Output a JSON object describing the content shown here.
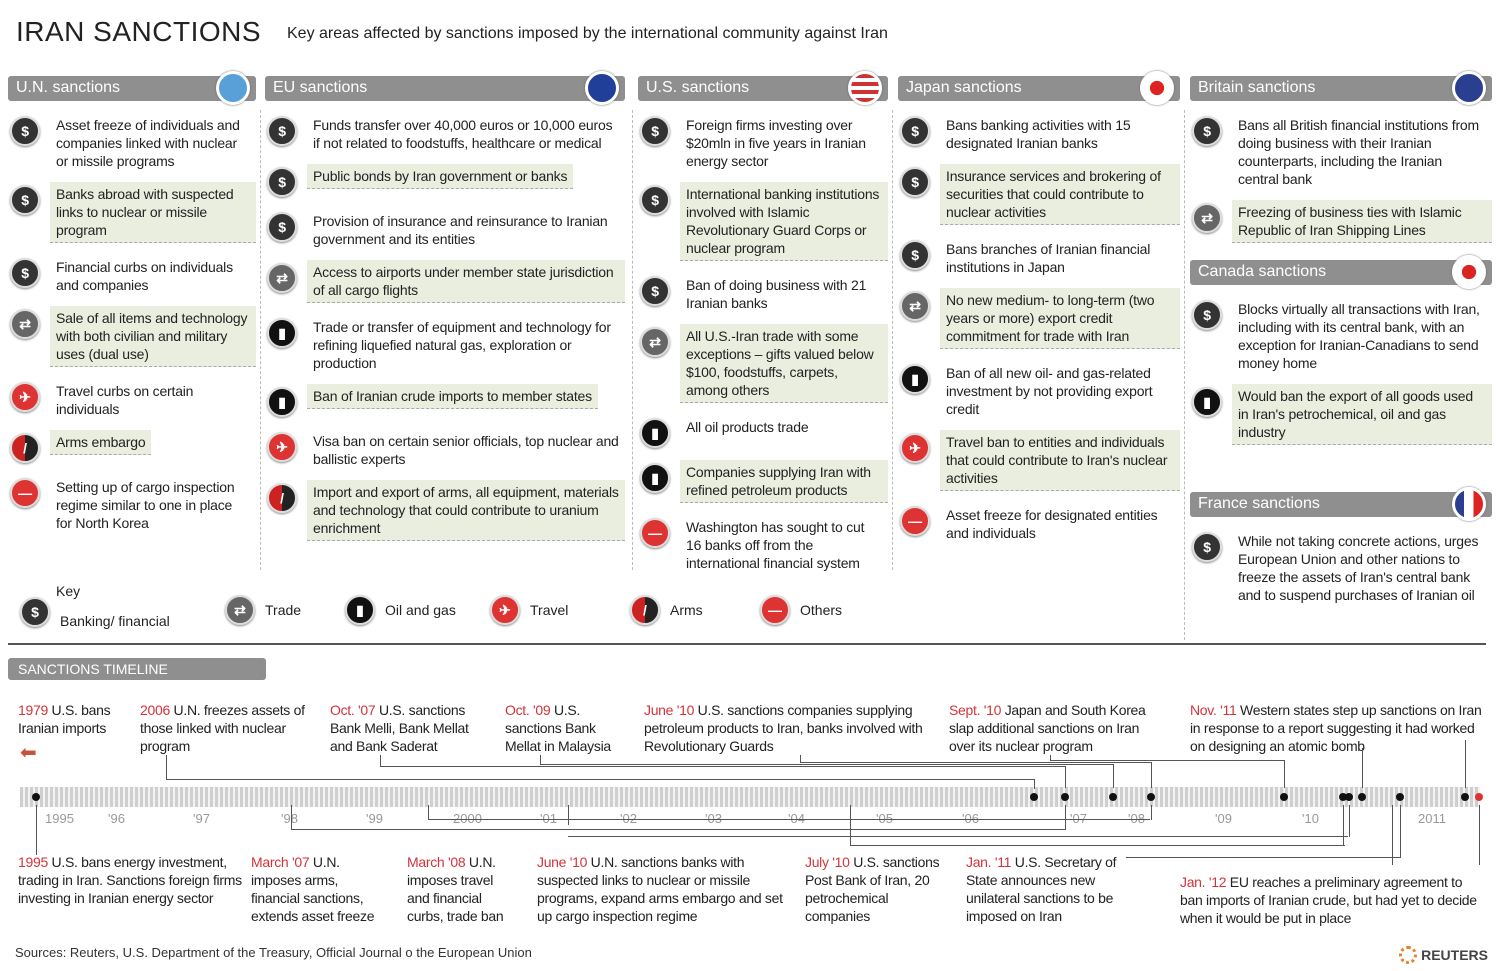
{
  "title": "IRAN SANCTIONS",
  "subtitle": "Key areas affected by sanctions imposed by the international community against Iran",
  "icon_glyphs": {
    "banking": "$",
    "trade": "⇄",
    "oil": "▮",
    "travel": "✈",
    "arms": "/",
    "others": "—"
  },
  "flag_colors": {
    "un": "#5aa0d8",
    "eu": "#1f3f99",
    "us": "#c33",
    "japan": "#fff",
    "britain": "#2a3f8f",
    "canada": "#fff",
    "france": "#fff"
  },
  "columns": [
    {
      "key": "un",
      "title": "U.N. sanctions",
      "items": [
        {
          "icon": "banking",
          "hl": false,
          "text": "Asset freeze of individuals and companies linked with nuclear or missile programs"
        },
        {
          "icon": "banking",
          "hl": true,
          "text": "Banks abroad with suspected links to nuclear or missile program"
        },
        {
          "icon": "banking",
          "hl": false,
          "text": "Financial curbs on individuals and companies"
        },
        {
          "icon": "trade",
          "hl": true,
          "text": "Sale of all items and technology with both civilian and military uses (dual use)"
        },
        {
          "icon": "travel",
          "hl": false,
          "text": "Travel curbs on certain individuals"
        },
        {
          "icon": "arms",
          "hl": true,
          "text": "Arms embargo"
        },
        {
          "icon": "others",
          "hl": false,
          "text": "Setting up of cargo inspection regime similar to one in place for North Korea"
        }
      ]
    },
    {
      "key": "eu",
      "title": "EU sanctions",
      "items": [
        {
          "icon": "banking",
          "hl": false,
          "text": "Funds transfer over 40,000 euros or 10,000 euros if not related to foodstuffs, healthcare or medical"
        },
        {
          "icon": "banking",
          "hl": true,
          "text": "Public bonds by Iran government or banks"
        },
        {
          "icon": "banking",
          "hl": false,
          "text": "Provision of insurance and reinsurance to Iranian government and its entities"
        },
        {
          "icon": "trade",
          "hl": true,
          "text": "Access to airports under member state jurisdiction of all cargo flights"
        },
        {
          "icon": "oil",
          "hl": false,
          "text": "Trade or transfer of equipment and technology for refining liquefied natural gas, exploration or production"
        },
        {
          "icon": "oil",
          "hl": true,
          "text": "Ban of Iranian crude imports to member states"
        },
        {
          "icon": "travel",
          "hl": false,
          "text": "Visa ban on certain senior officials, top nuclear and ballistic experts"
        },
        {
          "icon": "arms",
          "hl": true,
          "text": "Import and export of arms, all equipment, materials and technology that could contribute to uranium enrichment"
        }
      ]
    },
    {
      "key": "us",
      "title": "U.S. sanctions",
      "items": [
        {
          "icon": "banking",
          "hl": false,
          "text": "Foreign firms investing over $20mln in five years in Iranian energy sector"
        },
        {
          "icon": "banking",
          "hl": true,
          "text": "International banking institutions involved with Islamic Revolutionary Guard Corps or nuclear program"
        },
        {
          "icon": "banking",
          "hl": false,
          "text": "Ban of doing business with 21 Iranian banks"
        },
        {
          "icon": "trade",
          "hl": true,
          "text": "All U.S.-Iran trade with some exceptions – gifts valued below $100, foodstuffs, carpets, among others"
        },
        {
          "icon": "oil",
          "hl": false,
          "text": "All oil products trade"
        },
        {
          "icon": "oil",
          "hl": true,
          "text": "Companies supplying Iran with refined petroleum products"
        },
        {
          "icon": "others",
          "hl": false,
          "text": "Washington has sought to cut 16 banks off from the international financial system"
        }
      ]
    },
    {
      "key": "japan",
      "title": "Japan sanctions",
      "items": [
        {
          "icon": "banking",
          "hl": false,
          "text": "Bans banking activities with 15 designated Iranian banks"
        },
        {
          "icon": "banking",
          "hl": true,
          "text": "Insurance services and brokering of securities that could contribute to nuclear activities"
        },
        {
          "icon": "banking",
          "hl": false,
          "text": "Bans branches of Iranian financial institutions in Japan"
        },
        {
          "icon": "trade",
          "hl": true,
          "text": "No new medium- to long-term (two years or more) export credit commitment for trade with Iran"
        },
        {
          "icon": "oil",
          "hl": false,
          "text": "Ban of all new oil- and gas-related investment by not providing export credit"
        },
        {
          "icon": "travel",
          "hl": true,
          "text": "Travel ban to entities and individuals that could contribute to Iran's nuclear activities"
        },
        {
          "icon": "others",
          "hl": false,
          "text": "Asset freeze for designated entities and individuals"
        }
      ]
    },
    {
      "key": "britain",
      "title": "Britain sanctions",
      "items": [
        {
          "icon": "banking",
          "hl": false,
          "text": "Bans all British financial institutions from doing business with their Iranian counterparts, including the Iranian central bank"
        },
        {
          "icon": "trade",
          "hl": true,
          "text": "Freezing of business ties with Islamic Republic of Iran Shipping Lines"
        }
      ]
    },
    {
      "key": "canada",
      "title": "Canada sanctions",
      "items": [
        {
          "icon": "banking",
          "hl": false,
          "text": "Blocks virtually all transactions with Iran, including with its central bank, with an exception for Iranian-Canadians to send money home"
        },
        {
          "icon": "oil",
          "hl": true,
          "text": "Would ban the export of all goods used in Iran's petrochemical, oil and gas industry"
        }
      ]
    },
    {
      "key": "france",
      "title": "France sanctions",
      "items": [
        {
          "icon": "banking",
          "hl": false,
          "text": "While not taking concrete actions, urges European Union and other nations to freeze the assets of Iran's central bank and to suspend purchases of Iranian oil"
        }
      ]
    }
  ],
  "key": {
    "title": "Key",
    "items": [
      {
        "icon": "banking",
        "label": "Banking/ financial"
      },
      {
        "icon": "trade",
        "label": "Trade"
      },
      {
        "icon": "oil",
        "label": "Oil and gas"
      },
      {
        "icon": "travel",
        "label": "Travel"
      },
      {
        "icon": "arms",
        "label": "Arms"
      },
      {
        "icon": "others",
        "label": "Others"
      }
    ]
  },
  "timeline": {
    "title": "SANCTIONS TIMELINE",
    "years": [
      "1995",
      "'96",
      "'97",
      "'98",
      "'99",
      "2000",
      "'01",
      "'02",
      "'03",
      "'04",
      "'05",
      "'06",
      "'07",
      "'08",
      "'09",
      "'10",
      "2011"
    ],
    "top": [
      {
        "date": "1979",
        "text": " U.S. bans Iranian imports"
      },
      {
        "date": "2006",
        "text": " U.N. freezes assets of those linked with nuclear program"
      },
      {
        "date": "Oct. '07",
        "text": " U.S. sanctions Bank Melli, Bank Mellat and Bank Saderat"
      },
      {
        "date": "Oct. '09",
        "text": " U.S. sanctions Bank Mellat in Malaysia"
      },
      {
        "date": "June '10",
        "text": " U.S. sanctions companies supplying petroleum products to Iran, banks involved with Revolutionary Guards"
      },
      {
        "date": "Sept. '10",
        "text": " Japan and South Korea slap additional sanctions on Iran over its nuclear program"
      },
      {
        "date": "Nov. '11",
        "text": " Western states step up sanctions on Iran in response to a report suggesting it had worked on designing an atomic bomb"
      }
    ],
    "bottom": [
      {
        "date": "1995",
        "text": " U.S. bans energy investment, trading in Iran. Sanctions foreign firms investing in Iranian energy sector"
      },
      {
        "date": "March '07",
        "text": " U.N. imposes arms, financial sanctions, extends asset freeze"
      },
      {
        "date": "March '08",
        "text": " U.N. imposes travel and financial curbs, trade ban"
      },
      {
        "date": "June '10",
        "text": " U.N. sanctions banks with suspected links to nuclear or missile programs, expand arms embargo and set up cargo inspection regime"
      },
      {
        "date": "July '10",
        "text": " U.S. sanctions Post Bank of Iran, 20 petrochemical companies"
      },
      {
        "date": "Jan. '11",
        "text": " U.S. Secretary of State announces new unilateral sanctions to be imposed on Iran"
      },
      {
        "date": "Jan. '12",
        "text": " EU reaches a preliminary agreement to ban imports of Iranian crude, but had yet to decide when it would be put in place"
      }
    ]
  },
  "sources": "Sources: Reuters, U.S. Department of the Treasury, Official Journal o the European Union",
  "logo": "REUTERS"
}
